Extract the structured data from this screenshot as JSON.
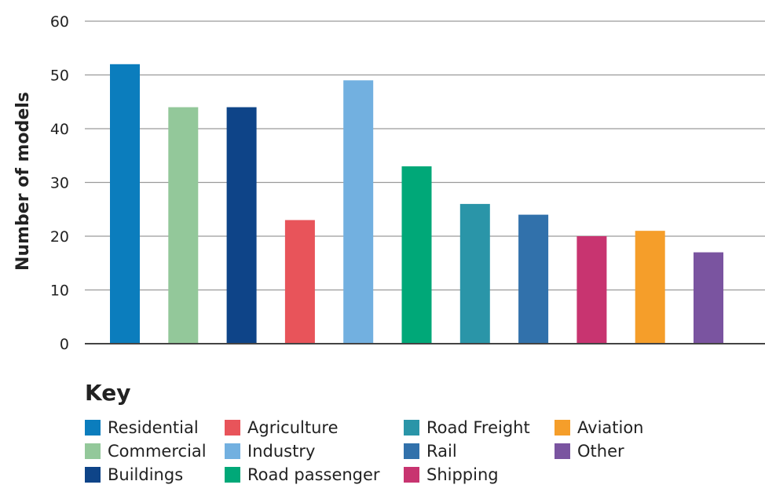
{
  "chart_data": {
    "type": "bar",
    "categories": [
      "Residential",
      "Commercial",
      "Buildings",
      "Agriculture",
      "Industry",
      "Road passenger",
      "Road Freight",
      "Rail",
      "Shipping",
      "Aviation",
      "Other"
    ],
    "values": [
      52,
      44,
      44,
      23,
      49,
      33,
      26,
      24,
      20,
      21,
      17
    ],
    "colors": [
      "#0b7dbd",
      "#93c89a",
      "#0e4488",
      "#e8545a",
      "#72b0e0",
      "#00a878",
      "#2a95a8",
      "#3171ab",
      "#c83470",
      "#f59e2a",
      "#7a54a0"
    ],
    "ylabel": "Number of models",
    "xlabel": "",
    "ylim": [
      0,
      60
    ],
    "yticks": [
      0,
      10,
      20,
      30,
      40,
      50,
      60
    ],
    "grid": true,
    "legend": {
      "title": "Key",
      "placement": "bottom",
      "columns": [
        [
          "Residential",
          "Commercial",
          "Buildings"
        ],
        [
          "Agriculture",
          "Industry",
          "Road passenger"
        ],
        [
          "Road Freight",
          "Rail",
          "Shipping"
        ],
        [
          "Aviation",
          "Other"
        ]
      ]
    }
  }
}
